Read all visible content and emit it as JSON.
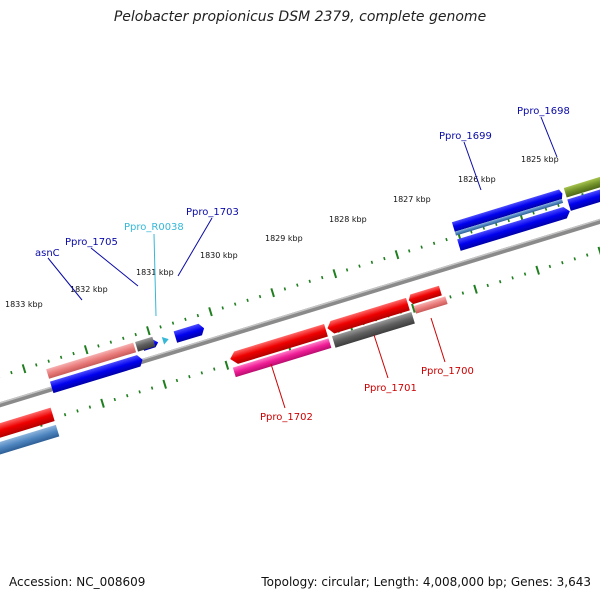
{
  "title": "Pelobacter propionicus DSM 2379, complete genome",
  "footer": {
    "accession": "Accession: NC_008609",
    "summary": "Topology: circular; Length: 4,008,000 bp; Genes: 3,643"
  },
  "colors": {
    "label_blue": "#0a0aa8",
    "label_cyan": "#35b8d8",
    "label_red": "#cc0000",
    "tick_green": "#1f7f1f",
    "backbone": "#8a8a8a"
  },
  "scale_labels": [
    "1825 kbp",
    "1826 kbp",
    "1827 kbp",
    "1828 kbp",
    "1829 kbp",
    "1830 kbp",
    "1831 kbp",
    "1832 kbp",
    "1833 kbp"
  ],
  "gene_labels": {
    "ppro_1698": "Ppro_1698",
    "ppro_1699": "Ppro_1699",
    "ppro_1700": "Ppro_1700",
    "ppro_1701": "Ppro_1701",
    "ppro_1702": "Ppro_1702",
    "ppro_1703": "Ppro_1703",
    "ppro_r0038": "Ppro_R0038",
    "ppro_1705": "Ppro_1705",
    "asnc": "asnC"
  }
}
